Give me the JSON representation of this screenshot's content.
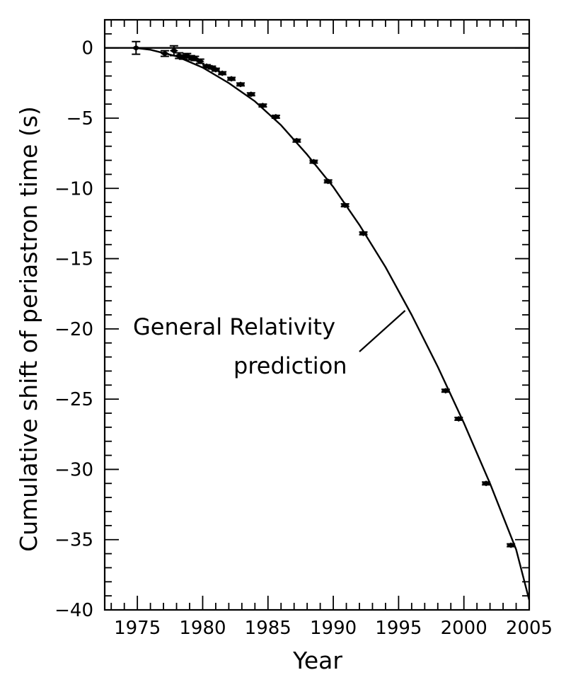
{
  "chart_data": {
    "type": "scatter",
    "xlabel": "Year",
    "ylabel": "Cumulative shift of periastron time (s)",
    "xlim": [
      1972.5,
      2005
    ],
    "ylim": [
      -40,
      2
    ],
    "xticks": [
      1975,
      1980,
      1985,
      1990,
      1995,
      2000,
      2005
    ],
    "yticks": [
      0,
      -5,
      -10,
      -15,
      -20,
      -25,
      -30,
      -35,
      -40
    ],
    "grid": false,
    "zero_line": true,
    "annotation": {
      "lines": [
        "General Relativity",
        "prediction"
      ],
      "points_to": [
        1995.5,
        -18.7
      ]
    },
    "series": [
      {
        "kind": "curve",
        "points": [
          [
            1974.8,
            0
          ],
          [
            1976,
            -0.13
          ],
          [
            1978,
            -0.6
          ],
          [
            1980,
            -1.4
          ],
          [
            1982,
            -2.5
          ],
          [
            1984,
            -3.8
          ],
          [
            1986,
            -5.5
          ],
          [
            1988,
            -7.6
          ],
          [
            1990,
            -9.9
          ],
          [
            1992,
            -12.6
          ],
          [
            1994,
            -15.6
          ],
          [
            1996,
            -19.0
          ],
          [
            1998,
            -22.7
          ],
          [
            2000,
            -26.7
          ],
          [
            2002,
            -31.0
          ],
          [
            2004,
            -35.7
          ],
          [
            2005,
            -39.3
          ]
        ]
      },
      {
        "kind": "points",
        "x": [
          1974.9,
          1977.1,
          1977.8,
          1978.2,
          1978.5,
          1978.8,
          1979.1,
          1979.4,
          1979.8,
          1980.3,
          1980.7,
          1981.0,
          1981.5,
          1982.2,
          1982.9,
          1983.7,
          1984.6,
          1985.6,
          1987.2,
          1988.5,
          1989.6,
          1990.9,
          1992.3,
          1998.6,
          1999.6,
          2001.7,
          2003.6
        ],
        "y": [
          0.0,
          -0.4,
          -0.2,
          -0.55,
          -0.65,
          -0.55,
          -0.7,
          -0.75,
          -0.95,
          -1.3,
          -1.4,
          -1.55,
          -1.8,
          -2.2,
          -2.6,
          -3.3,
          -4.1,
          -4.9,
          -6.6,
          -8.1,
          -9.5,
          -11.2,
          -13.2,
          -24.4,
          -26.4,
          -31.0,
          -35.4
        ],
        "yerr": [
          0.45,
          0.2,
          0.35,
          0.2,
          0.15,
          0.15,
          0.15,
          0.15,
          0.15,
          0.1,
          0.1,
          0.1,
          0.1,
          0.1,
          0.1,
          0.1,
          0.1,
          0.1,
          0.1,
          0.1,
          0.1,
          0.1,
          0.1,
          0.1,
          0.1,
          0.1,
          0.1
        ]
      }
    ]
  }
}
